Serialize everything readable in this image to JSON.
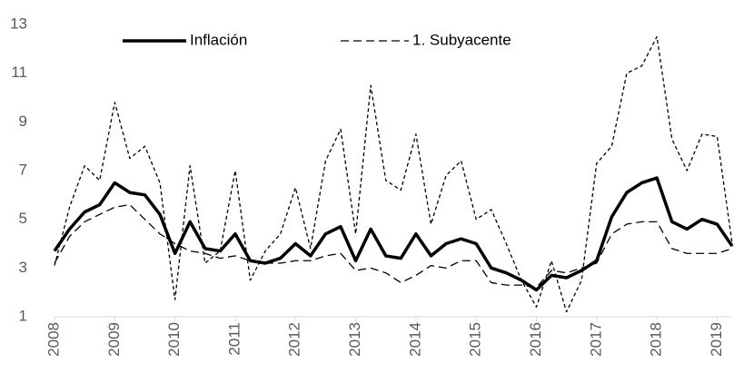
{
  "chart_data": {
    "type": "line",
    "x": [
      2008,
      2008.25,
      2008.5,
      2008.75,
      2009,
      2009.25,
      2009.5,
      2009.75,
      2010,
      2010.25,
      2010.5,
      2010.75,
      2011,
      2011.25,
      2011.5,
      2011.75,
      2012,
      2012.25,
      2012.5,
      2012.75,
      2013,
      2013.25,
      2013.5,
      2013.75,
      2014,
      2014.25,
      2014.5,
      2014.75,
      2015,
      2015.25,
      2015.5,
      2015.75,
      2016,
      2016.25,
      2016.5,
      2016.75,
      2017,
      2017.25,
      2017.5,
      2017.75,
      2018,
      2018.25,
      2018.5,
      2018.75,
      2019,
      2019.25
    ],
    "series": [
      {
        "name": "Inflación",
        "color": "#000000",
        "style": "solid",
        "values": [
          3.7,
          4.6,
          5.3,
          5.6,
          6.5,
          6.1,
          6.0,
          5.2,
          3.6,
          4.9,
          3.8,
          3.7,
          4.4,
          3.3,
          3.2,
          3.4,
          4.0,
          3.5,
          4.4,
          4.7,
          3.3,
          4.6,
          3.5,
          3.4,
          4.4,
          3.5,
          4.0,
          4.2,
          4.0,
          3.0,
          2.8,
          2.5,
          2.1,
          2.7,
          2.6,
          2.9,
          3.3,
          5.1,
          6.1,
          6.5,
          6.7,
          4.9,
          4.6,
          5.0,
          4.8,
          3.9
        ]
      },
      {
        "name": "1. Subyacente",
        "color": "#000000",
        "style": "long-dash",
        "values": [
          3.2,
          4.3,
          4.9,
          5.2,
          5.5,
          5.6,
          5.0,
          4.4,
          4.0,
          3.7,
          3.6,
          3.4,
          3.5,
          3.3,
          3.2,
          3.2,
          3.3,
          3.3,
          3.5,
          3.6,
          2.9,
          3.0,
          2.8,
          2.4,
          2.7,
          3.1,
          3.0,
          3.3,
          3.3,
          2.4,
          2.3,
          2.3,
          2.2,
          2.9,
          2.8,
          3.0,
          3.2,
          4.4,
          4.8,
          4.9,
          4.9,
          3.8,
          3.6,
          3.6,
          3.6,
          3.8
        ]
      },
      {
        "color": "#000000",
        "style": "short-dash",
        "values": [
          3.1,
          5.5,
          7.2,
          6.6,
          9.8,
          7.5,
          8.0,
          6.5,
          1.7,
          7.2,
          3.2,
          3.7,
          7.0,
          2.5,
          3.7,
          4.4,
          6.3,
          3.8,
          7.4,
          8.7,
          4.4,
          10.5,
          6.6,
          6.2,
          8.5,
          4.8,
          6.8,
          7.4,
          5.0,
          5.4,
          4.0,
          2.5,
          1.4,
          3.3,
          1.2,
          2.5,
          7.3,
          8.0,
          11.0,
          11.3,
          12.5,
          8.3,
          7.0,
          8.5,
          8.4,
          4.0
        ]
      }
    ],
    "xlim": [
      2008,
      2019.25
    ],
    "xticks": [
      2008,
      2009,
      2010,
      2011,
      2012,
      2013,
      2014,
      2015,
      2016,
      2017,
      2018,
      2019
    ],
    "ylim": [
      1,
      13
    ],
    "yticks": [
      1,
      3,
      5,
      7,
      9,
      11,
      13
    ]
  }
}
